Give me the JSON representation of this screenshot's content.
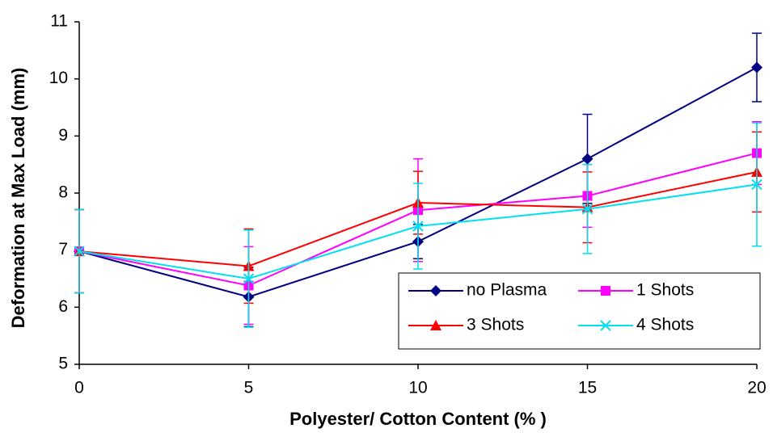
{
  "chart_data": {
    "type": "line",
    "y_label": "Deformation at Max Load (mm)",
    "x_label": "Polyester/ Cotton Content (% )",
    "x": [
      0,
      5,
      10,
      15,
      20
    ],
    "xlim": [
      0,
      20
    ],
    "xticks": [
      0,
      5,
      10,
      15,
      20
    ],
    "ylim": [
      5,
      11
    ],
    "yticks": [
      5,
      6,
      7,
      8,
      9,
      10,
      11
    ],
    "grid": false,
    "legend": "lower right",
    "series": [
      {
        "name": "no Plasma",
        "color": "#000080",
        "marker": "diamond",
        "values": [
          6.98,
          6.18,
          7.15,
          8.6,
          10.2
        ],
        "errors": [
          0.73,
          0.52,
          0.3,
          0.78,
          0.6
        ]
      },
      {
        "name": "1 Shots",
        "color": "#ff00ff",
        "marker": "square",
        "values": [
          6.98,
          6.38,
          7.7,
          7.95,
          8.7
        ],
        "errors": [
          0.73,
          0.68,
          0.9,
          0.55,
          0.55
        ]
      },
      {
        "name": "3 Shots",
        "color": "#ff0000",
        "marker": "triangle",
        "values": [
          6.98,
          6.72,
          7.83,
          7.75,
          8.37
        ],
        "errors": [
          0.73,
          0.65,
          0.55,
          0.62,
          0.7
        ]
      },
      {
        "name": "4 Shots",
        "color": "#00e0f0",
        "marker": "cross",
        "values": [
          6.98,
          6.5,
          7.42,
          7.72,
          8.15
        ],
        "errors": [
          0.73,
          0.85,
          0.75,
          0.78,
          1.08
        ]
      }
    ]
  }
}
